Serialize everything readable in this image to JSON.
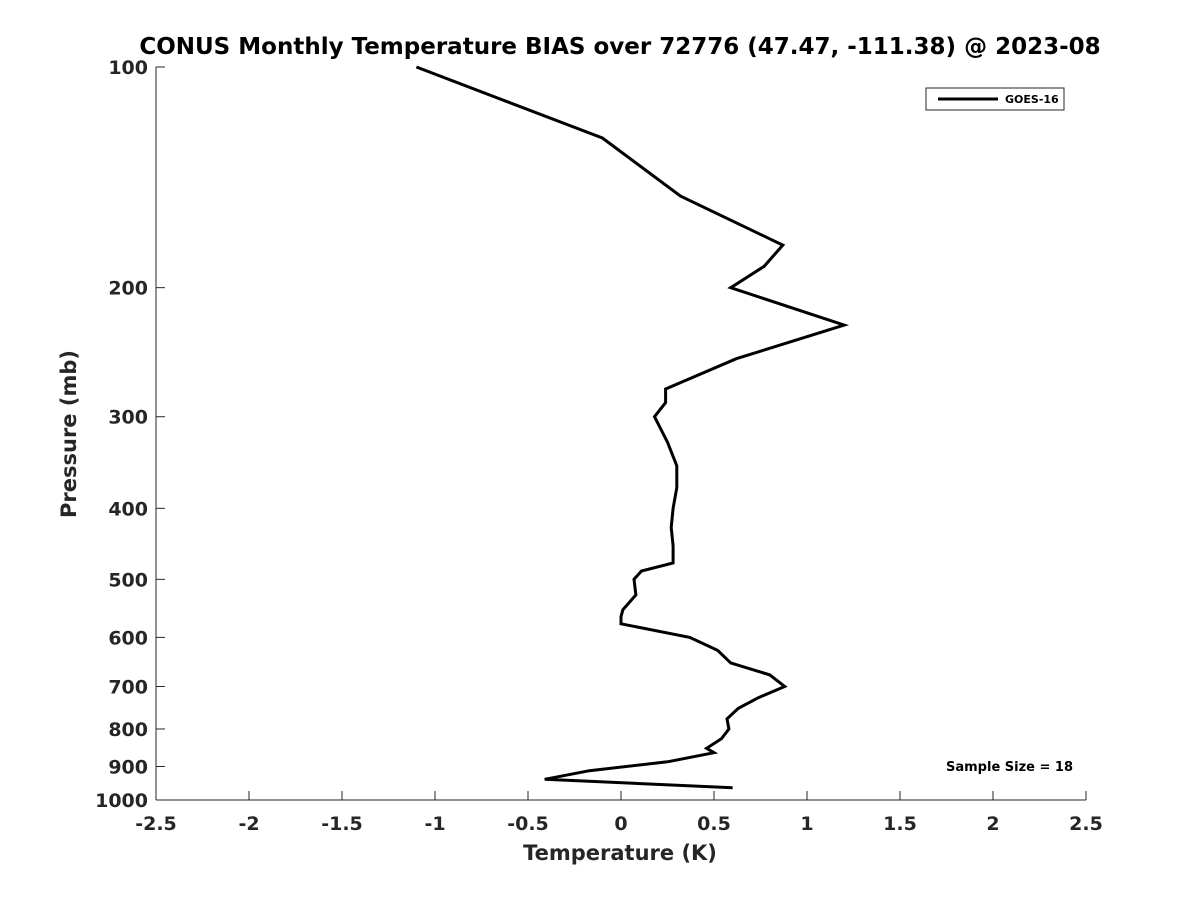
{
  "chart_data": {
    "type": "line",
    "title": "CONUS Monthly Temperature BIAS over 72776 (47.47, -111.38) @ 2023-08",
    "xlabel": "Temperature (K)",
    "ylabel": "Pressure (mb)",
    "xlim": [
      -2.5,
      2.5
    ],
    "ylim": [
      100,
      1000
    ],
    "y_scale": "log",
    "y_reversed": true,
    "grid": false,
    "legend_placement": "top-right",
    "x_ticks": [
      "-2.5",
      "-2",
      "-1.5",
      "-1",
      "-0.5",
      "0",
      "0.5",
      "1",
      "1.5",
      "2",
      "2.5"
    ],
    "y_ticks": [
      "100",
      "200",
      "300",
      "400",
      "500",
      "600",
      "700",
      "800",
      "900",
      "1000"
    ],
    "series": [
      {
        "name": "GOES-16",
        "color": "#000000",
        "points": [
          {
            "x": -1.1,
            "y": 100
          },
          {
            "x": -0.1,
            "y": 125
          },
          {
            "x": 0.32,
            "y": 150
          },
          {
            "x": 0.87,
            "y": 175
          },
          {
            "x": 0.77,
            "y": 187
          },
          {
            "x": 0.59,
            "y": 200
          },
          {
            "x": 1.2,
            "y": 225
          },
          {
            "x": 0.62,
            "y": 250
          },
          {
            "x": 0.24,
            "y": 275
          },
          {
            "x": 0.24,
            "y": 287
          },
          {
            "x": 0.18,
            "y": 300
          },
          {
            "x": 0.25,
            "y": 325
          },
          {
            "x": 0.3,
            "y": 350
          },
          {
            "x": 0.3,
            "y": 375
          },
          {
            "x": 0.28,
            "y": 400
          },
          {
            "x": 0.27,
            "y": 425
          },
          {
            "x": 0.28,
            "y": 450
          },
          {
            "x": 0.28,
            "y": 475
          },
          {
            "x": 0.11,
            "y": 487
          },
          {
            "x": 0.07,
            "y": 500
          },
          {
            "x": 0.08,
            "y": 525
          },
          {
            "x": 0.01,
            "y": 550
          },
          {
            "x": 0.0,
            "y": 562
          },
          {
            "x": 0.0,
            "y": 575
          },
          {
            "x": 0.37,
            "y": 600
          },
          {
            "x": 0.52,
            "y": 625
          },
          {
            "x": 0.59,
            "y": 650
          },
          {
            "x": 0.8,
            "y": 675
          },
          {
            "x": 0.88,
            "y": 700
          },
          {
            "x": 0.74,
            "y": 725
          },
          {
            "x": 0.63,
            "y": 750
          },
          {
            "x": 0.57,
            "y": 775
          },
          {
            "x": 0.58,
            "y": 800
          },
          {
            "x": 0.54,
            "y": 825
          },
          {
            "x": 0.46,
            "y": 850
          },
          {
            "x": 0.5,
            "y": 862
          },
          {
            "x": 0.25,
            "y": 887
          },
          {
            "x": -0.17,
            "y": 912
          },
          {
            "x": -0.41,
            "y": 937
          },
          {
            "x": 0.6,
            "y": 962
          }
        ]
      }
    ],
    "annotations": [
      "Sample Size = 18"
    ]
  }
}
